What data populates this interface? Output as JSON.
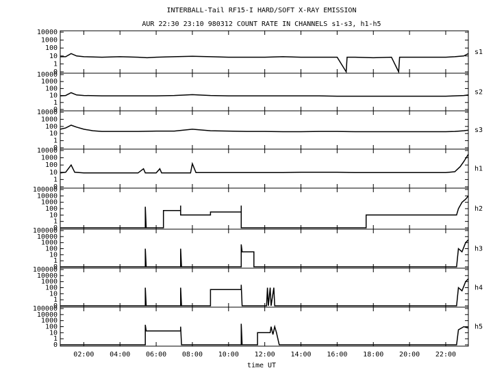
{
  "title": "INTERBALL-Tail RF15-I HARD/SOFT X-RAY EMISSION",
  "subtitle": "AUR 22:30 23:10 980312  COUNT RATE IN CHANNELS s1-s3, h1-h5",
  "xlabel": "time UT",
  "chart_data": [
    {
      "type": "line",
      "label": "s1",
      "color": "#000000",
      "scale": "log0",
      "xlim": [
        0.7,
        23.25
      ],
      "ylim": [
        0,
        10000
      ],
      "yticks": [
        0,
        1,
        10,
        100,
        1000,
        10000
      ],
      "x": [
        0.7,
        1.0,
        1.3,
        1.6,
        2,
        3,
        4,
        5,
        5.5,
        6,
        7,
        8,
        9,
        10,
        11,
        12,
        13,
        14,
        15,
        16,
        16.5,
        16.55,
        17,
        18,
        19,
        19.4,
        19.45,
        20,
        21,
        22,
        22.5,
        23,
        23.25
      ],
      "values": [
        8,
        8,
        20,
        10,
        8,
        7,
        8,
        7,
        6,
        7,
        8,
        9,
        8,
        7,
        7,
        7,
        8,
        7,
        7,
        7,
        0,
        7,
        7,
        6,
        7,
        0,
        7,
        7,
        7,
        7,
        8,
        10,
        20
      ]
    },
    {
      "type": "line",
      "label": "s2",
      "color": "#000000",
      "scale": "log0",
      "xlim": [
        0.7,
        23.25
      ],
      "ylim": [
        0,
        10000
      ],
      "yticks": [
        0,
        1,
        10,
        100,
        1000,
        10000
      ],
      "x": [
        0.7,
        1.0,
        1.3,
        1.6,
        2,
        3,
        4,
        5,
        6,
        7,
        8,
        9,
        10,
        11,
        12,
        13,
        14,
        15,
        16,
        17,
        18,
        19,
        20,
        21,
        22,
        22.5,
        23,
        23.25
      ],
      "values": [
        9,
        10,
        25,
        12,
        10,
        9,
        9,
        9,
        9,
        10,
        13,
        10,
        9,
        9,
        9,
        9,
        9,
        9,
        8,
        8,
        8,
        8,
        8,
        8,
        8,
        9,
        10,
        12
      ]
    },
    {
      "type": "line",
      "label": "s3",
      "color": "#000000",
      "scale": "log0",
      "xlim": [
        0.7,
        23.25
      ],
      "ylim": [
        0,
        10000
      ],
      "yticks": [
        0,
        1,
        10,
        100,
        1000,
        10000
      ],
      "x": [
        0.7,
        1.0,
        1.3,
        1.6,
        2,
        2.5,
        3,
        4,
        5,
        6,
        7,
        8,
        9,
        10,
        11,
        12,
        13,
        14,
        15,
        16,
        17,
        18,
        19,
        20,
        21,
        22,
        22.5,
        23,
        23.25
      ],
      "values": [
        40,
        60,
        150,
        80,
        40,
        25,
        20,
        20,
        20,
        22,
        22,
        40,
        25,
        22,
        20,
        20,
        18,
        18,
        20,
        20,
        18,
        18,
        18,
        18,
        18,
        18,
        20,
        25,
        30
      ]
    },
    {
      "type": "line",
      "label": "h1",
      "color": "#000000",
      "scale": "log0",
      "xlim": [
        0.7,
        23.25
      ],
      "ylim": [
        0,
        10000
      ],
      "yticks": [
        0,
        1,
        10,
        100,
        1000,
        10000
      ],
      "x": [
        0.7,
        1.0,
        1.3,
        1.5,
        2,
        3,
        4,
        5,
        5.3,
        5.4,
        6,
        6.2,
        6.3,
        7,
        7.9,
        8.0,
        8.2,
        9,
        10,
        11,
        12,
        13,
        14,
        15,
        16,
        17,
        18,
        19,
        20,
        21,
        22,
        22.5,
        22.8,
        23,
        23.25
      ],
      "values": [
        8,
        10,
        100,
        10,
        8,
        8,
        8,
        8,
        30,
        8,
        8,
        30,
        8,
        8,
        8,
        150,
        9,
        9,
        9,
        9,
        9,
        9,
        10,
        10,
        10,
        9,
        9,
        9,
        9,
        9,
        9,
        12,
        60,
        300,
        3000
      ]
    },
    {
      "type": "line",
      "label": "h2",
      "color": "#000000",
      "scale": "log0",
      "xlim": [
        0.7,
        23.25
      ],
      "ylim": [
        0,
        100000
      ],
      "yticks": [
        0,
        1,
        10,
        100,
        1000,
        10000,
        100000
      ],
      "x": [
        0.7,
        5.4,
        5.4,
        5.45,
        6.4,
        6.4,
        7.35,
        7.35,
        7.35,
        9,
        9,
        10.7,
        10.7,
        10.7,
        17.6,
        17.6,
        22.6,
        22.7,
        22.9,
        23.1,
        23.25
      ],
      "values": [
        0,
        0,
        200,
        0,
        0,
        50,
        50,
        300,
        10,
        10,
        30,
        30,
        300,
        0,
        0,
        10,
        10,
        100,
        1000,
        3000,
        10000
      ]
    },
    {
      "type": "line",
      "label": "h3",
      "color": "#000000",
      "scale": "log0",
      "xlim": [
        0.7,
        23.25
      ],
      "ylim": [
        0,
        100000
      ],
      "yticks": [
        0,
        1,
        10,
        100,
        1000,
        10000,
        100000
      ],
      "x": [
        0.7,
        5.4,
        5.4,
        5.45,
        7.35,
        7.35,
        7.4,
        10.7,
        10.7,
        10.75,
        11.4,
        11.4,
        22.6,
        22.7,
        22.9,
        23.1,
        23.25
      ],
      "values": [
        0,
        0,
        100,
        0,
        0,
        100,
        0,
        0,
        500,
        30,
        30,
        0,
        0,
        100,
        30,
        1000,
        3000
      ]
    },
    {
      "type": "line",
      "label": "h4",
      "color": "#000000",
      "scale": "log0",
      "xlim": [
        0.7,
        23.25
      ],
      "ylim": [
        0,
        100000
      ],
      "yticks": [
        0,
        1,
        10,
        100,
        1000,
        10000,
        100000
      ],
      "x": [
        0.7,
        5.4,
        5.4,
        5.45,
        7.35,
        7.35,
        7.4,
        9,
        9,
        10.7,
        10.7,
        10.75,
        12.1,
        12.15,
        12.2,
        12.3,
        12.35,
        12.5,
        12.55,
        12.6,
        22.6,
        22.7,
        22.9,
        23.1,
        23.25
      ],
      "values": [
        0,
        0,
        100,
        0,
        0,
        100,
        0,
        0,
        50,
        50,
        300,
        0,
        0,
        100,
        0,
        100,
        0,
        100,
        0,
        0,
        0,
        100,
        30,
        1000,
        3000
      ]
    },
    {
      "type": "line",
      "label": "h5",
      "color": "#000000",
      "scale": "log0",
      "xlim": [
        0.7,
        23.25
      ],
      "ylim": [
        0,
        100000
      ],
      "yticks": [
        0,
        1,
        10,
        100,
        1000,
        10000,
        100000
      ],
      "x": [
        0.7,
        5.4,
        5.4,
        5.45,
        7.35,
        7.35,
        7.4,
        10.7,
        10.7,
        10.75,
        11.6,
        11.6,
        12.3,
        12.35,
        12.45,
        12.55,
        12.65,
        12.8,
        22.6,
        22.7,
        23,
        23.25
      ],
      "values": [
        0,
        0,
        200,
        20,
        20,
        100,
        0,
        0,
        300,
        0,
        0,
        10,
        10,
        100,
        5,
        100,
        10,
        0,
        0,
        30,
        100,
        60
      ],
      "xticks": [
        {
          "value": 2,
          "label": "02:00"
        },
        {
          "value": 4,
          "label": "04:00"
        },
        {
          "value": 6,
          "label": "06:00"
        },
        {
          "value": 8,
          "label": "08:00"
        },
        {
          "value": 10,
          "label": "10:00"
        },
        {
          "value": 12,
          "label": "12:00"
        },
        {
          "value": 14,
          "label": "14:00"
        },
        {
          "value": 16,
          "label": "16:00"
        },
        {
          "value": 18,
          "label": "18:00"
        },
        {
          "value": 20,
          "label": "20:00"
        },
        {
          "value": 22,
          "label": "22:00"
        }
      ]
    }
  ]
}
